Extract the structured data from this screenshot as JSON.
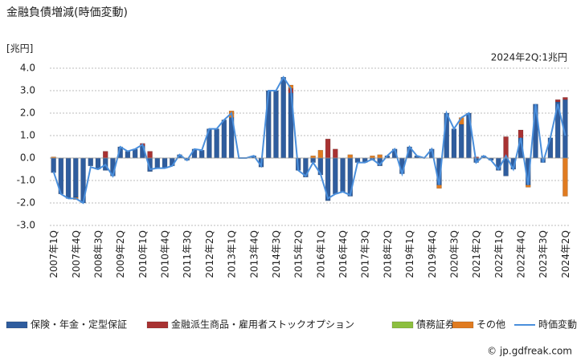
{
  "chart_data": {
    "type": "bar",
    "title": "金融負債増減(時価変動)",
    "y_unit": "[兆円]",
    "annotation": "2024年2Q:1兆円",
    "source": "© jp.gdfreak.com",
    "ylim": [
      -3,
      4
    ],
    "yticks": [
      {
        "value": 4,
        "label": "4.0"
      },
      {
        "value": 3,
        "label": "3.0"
      },
      {
        "value": 2,
        "label": "2.0"
      },
      {
        "value": 1,
        "label": "1.0"
      },
      {
        "value": 0,
        "label": "0.0"
      },
      {
        "value": -1,
        "label": "-1.0"
      },
      {
        "value": -2,
        "label": "-2.0"
      },
      {
        "value": -3,
        "label": "-3.0"
      }
    ],
    "grid": true,
    "categories": [
      "2007年1Q",
      null,
      null,
      "2007年4Q",
      null,
      null,
      "2008年3Q",
      null,
      null,
      "2009年2Q",
      null,
      null,
      "2010年1Q",
      null,
      null,
      "2010年4Q",
      null,
      null,
      "2011年3Q",
      null,
      null,
      "2012年2Q",
      null,
      null,
      "2013年1Q",
      null,
      null,
      "2013年4Q",
      null,
      null,
      "2014年3Q",
      null,
      null,
      "2015年2Q",
      null,
      null,
      "2016年1Q",
      null,
      null,
      "2016年4Q",
      null,
      null,
      "2017年3Q",
      null,
      null,
      "2018年2Q",
      null,
      null,
      "2019年1Q",
      null,
      null,
      "2019年4Q",
      null,
      null,
      "2020年3Q",
      null,
      null,
      "2021年2Q",
      null,
      null,
      "2022年1Q",
      null,
      null,
      "2022年4Q",
      null,
      null,
      "2023年3Q",
      null,
      null,
      "2024年2Q"
    ],
    "series": [
      {
        "name": "保険・年金・定型保証",
        "color": "#2f5d9e",
        "values": [
          -0.65,
          -1.6,
          -1.8,
          -1.75,
          -2.0,
          -0.35,
          -0.5,
          -0.55,
          -0.8,
          0.5,
          0.3,
          0.4,
          0.55,
          -0.6,
          -0.45,
          -0.45,
          -0.35,
          0.15,
          -0.1,
          0.4,
          0.35,
          1.3,
          1.3,
          1.7,
          1.8,
          0.0,
          0.0,
          0.1,
          -0.4,
          3.0,
          3.0,
          3.6,
          2.9,
          -0.55,
          -0.85,
          -0.2,
          -0.75,
          -1.9,
          -1.6,
          -1.5,
          -1.7,
          -0.2,
          -0.2,
          -0.1,
          -0.35,
          0.1,
          0.4,
          -0.7,
          0.5,
          0.1,
          0.0,
          0.4,
          -1.2,
          2.0,
          1.3,
          1.5,
          2.0,
          -0.2,
          0.1,
          -0.1,
          -0.55,
          -0.8,
          -0.5,
          0.9,
          -1.2,
          2.4,
          -0.2,
          0.9,
          2.5,
          2.6
        ]
      },
      {
        "name": "金融派生商品・雇用者ストックオプション",
        "color": "#a83232",
        "values": [
          0,
          0,
          0,
          0,
          0,
          0,
          0,
          0.3,
          0,
          0,
          0,
          0,
          0.1,
          0.3,
          0,
          0,
          0,
          0,
          0,
          0,
          0,
          0,
          0,
          0,
          0,
          0,
          0,
          0,
          0,
          0,
          0,
          0,
          0.2,
          0,
          0,
          0,
          0,
          0.85,
          0.4,
          0,
          0,
          0,
          0,
          0,
          0,
          0,
          0,
          0,
          0,
          0,
          0,
          0,
          0,
          0,
          0,
          0,
          0,
          0.05,
          0,
          0,
          0,
          0.95,
          0,
          0.35,
          0,
          0,
          0,
          0,
          0.1,
          0.1
        ]
      },
      {
        "name": "債務証券",
        "color": "#8cbf3f",
        "values": [
          0,
          0,
          0,
          0,
          0,
          0,
          0,
          0,
          0,
          0,
          0,
          0,
          0,
          0,
          0,
          0,
          0,
          0,
          0,
          0,
          0,
          0,
          0,
          0,
          0,
          0,
          0,
          0,
          0,
          0,
          0,
          0,
          0,
          0,
          0,
          0,
          0,
          0,
          0,
          0,
          0,
          0,
          0,
          0,
          0,
          0,
          0,
          0,
          0,
          0,
          0,
          0,
          0,
          0,
          0,
          0,
          0,
          0,
          0,
          0,
          0,
          0,
          0,
          0,
          0,
          0,
          0,
          0,
          0,
          0
        ]
      },
      {
        "name": "その他",
        "color": "#e07b20",
        "values": [
          0.05,
          0,
          0,
          -0.1,
          0,
          0,
          0,
          0,
          0,
          0,
          0,
          0,
          0,
          0,
          0,
          0,
          0,
          0,
          0,
          0,
          0,
          0,
          0,
          0,
          0.3,
          0,
          0,
          0,
          0,
          0,
          0,
          0,
          0.15,
          0,
          0,
          0.1,
          0.35,
          0,
          0,
          0,
          0.15,
          0,
          0,
          0.1,
          0.15,
          0,
          0,
          0,
          0,
          0,
          0,
          0,
          -0.15,
          0,
          0,
          0.3,
          0,
          0,
          0,
          0,
          0,
          0,
          0,
          0,
          -0.1,
          0,
          0,
          0,
          0,
          -1.7
        ]
      },
      {
        "name": "時価変動",
        "type": "line",
        "color": "#4a8fdc",
        "values": [
          -0.6,
          -1.6,
          -1.8,
          -1.8,
          -2.0,
          -0.4,
          -0.5,
          -0.3,
          -0.8,
          0.5,
          0.3,
          0.4,
          0.6,
          -0.5,
          -0.45,
          -0.45,
          -0.35,
          0.15,
          -0.1,
          0.4,
          0.35,
          1.3,
          1.3,
          1.7,
          2.0,
          0.0,
          0.0,
          0.1,
          -0.35,
          3.0,
          3.0,
          3.6,
          3.1,
          -0.55,
          -0.8,
          -0.2,
          -0.7,
          -1.8,
          -1.6,
          -1.5,
          -1.65,
          -0.2,
          -0.2,
          -0.05,
          -0.3,
          0.1,
          0.4,
          -0.7,
          0.5,
          0.1,
          0.0,
          0.4,
          -1.2,
          2.0,
          1.3,
          1.8,
          2.0,
          -0.2,
          0.1,
          -0.1,
          -0.5,
          0.1,
          -0.5,
          0.9,
          -1.2,
          2.4,
          -0.2,
          0.9,
          2.4,
          1.0
        ]
      }
    ]
  }
}
